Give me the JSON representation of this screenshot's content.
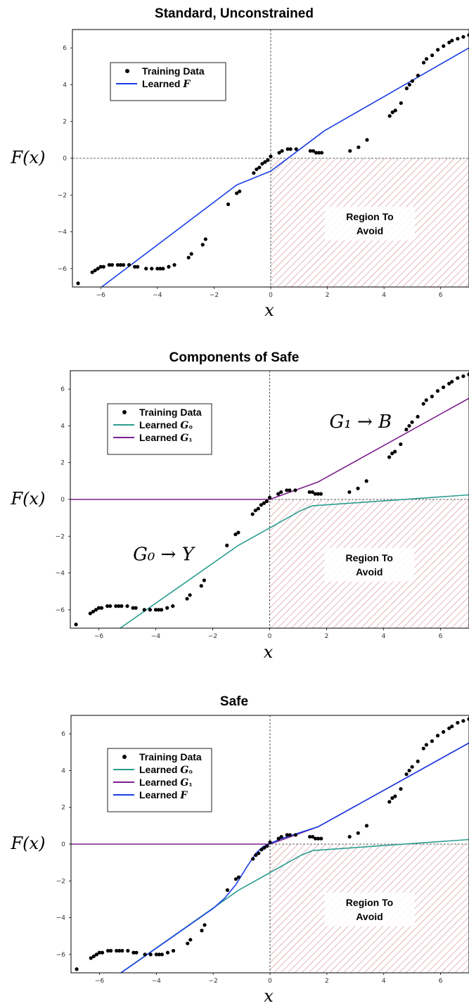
{
  "chart_data": [
    {
      "type": "line",
      "title": "Standard, Unconstrained",
      "xlabel": "x",
      "ylabel": "F(x)",
      "xlim": [
        -7,
        7
      ],
      "ylim": [
        -7,
        7
      ],
      "xticks": [
        -6,
        -4,
        -2,
        0,
        2,
        4,
        6
      ],
      "yticks": [
        -6,
        -4,
        -2,
        0,
        2,
        4,
        6
      ],
      "legend": [
        "Training Data",
        "Learned F"
      ],
      "legend_position": "upper-left",
      "region_label": [
        "Region To",
        "Avoid"
      ],
      "scatter": {
        "name": "Training Data",
        "x": [
          -6.8,
          -6.3,
          -6.2,
          -6.1,
          -6.0,
          -5.9,
          -5.7,
          -5.6,
          -5.4,
          -5.3,
          -5.2,
          -5.0,
          -4.8,
          -4.7,
          -4.4,
          -4.2,
          -4.0,
          -3.9,
          -3.8,
          -3.6,
          -3.4,
          -2.9,
          -2.8,
          -2.4,
          -2.3,
          -1.5,
          -1.2,
          -1.1,
          -0.6,
          -0.5,
          -0.4,
          -0.3,
          -0.2,
          -0.1,
          0.0,
          0.3,
          0.4,
          0.6,
          0.7,
          0.9,
          1.4,
          1.5,
          1.6,
          1.7,
          1.8,
          2.8,
          3.1,
          3.4,
          4.2,
          4.3,
          4.4,
          4.6,
          4.8,
          4.9,
          5.0,
          5.2,
          5.4,
          5.5,
          5.7,
          5.9,
          6.1,
          6.3,
          6.4,
          6.6,
          6.8,
          7.0
        ],
        "y": [
          -6.8,
          -6.2,
          -6.1,
          -6.0,
          -5.9,
          -5.9,
          -5.8,
          -5.8,
          -5.8,
          -5.8,
          -5.8,
          -5.8,
          -5.9,
          -5.9,
          -6.0,
          -6.0,
          -6.0,
          -6.0,
          -6.0,
          -5.9,
          -5.8,
          -5.4,
          -5.2,
          -4.7,
          -4.4,
          -2.5,
          -1.9,
          -1.8,
          -0.8,
          -0.6,
          -0.5,
          -0.3,
          -0.2,
          -0.1,
          0.1,
          0.3,
          0.4,
          0.5,
          0.5,
          0.5,
          0.4,
          0.4,
          0.3,
          0.3,
          0.3,
          0.4,
          0.6,
          1.0,
          2.3,
          2.5,
          2.6,
          3.0,
          3.8,
          4.0,
          4.2,
          4.5,
          5.2,
          5.4,
          5.6,
          5.9,
          6.1,
          6.3,
          6.4,
          6.5,
          6.6,
          6.7
        ]
      },
      "series": [
        {
          "name": "Learned F",
          "color": "#1a3ee6",
          "x": [
            -7,
            -1.2,
            0,
            1.9,
            7
          ],
          "y": [
            -8.2,
            -1.45,
            -0.7,
            1.5,
            6.0
          ]
        }
      ]
    },
    {
      "type": "line",
      "title": "Components of Safe",
      "xlabel": "x",
      "ylabel": "F(x)",
      "xlim": [
        -7,
        7
      ],
      "ylim": [
        -7,
        7
      ],
      "xticks": [
        -6,
        -4,
        -2,
        0,
        2,
        4,
        6
      ],
      "yticks": [
        -6,
        -4,
        -2,
        0,
        2,
        4,
        6
      ],
      "legend": [
        "Training Data",
        "Learned G₀",
        "Learned G₁"
      ],
      "legend_position": "upper-left",
      "region_label": [
        "Region To",
        "Avoid"
      ],
      "annotations": [
        {
          "text": "G₁ → B",
          "x": 2.1,
          "y": 3.9,
          "color": "#5a1a5e"
        },
        {
          "text": "G₀ → Y",
          "x": -4.8,
          "y": -3.3,
          "color": "#0f4f45"
        }
      ],
      "scatter": {
        "name": "Training Data",
        "x": [
          -6.8,
          -6.3,
          -6.2,
          -6.1,
          -6.0,
          -5.9,
          -5.7,
          -5.6,
          -5.4,
          -5.3,
          -5.2,
          -5.0,
          -4.8,
          -4.7,
          -4.4,
          -4.2,
          -4.0,
          -3.9,
          -3.8,
          -3.6,
          -3.4,
          -2.9,
          -2.8,
          -2.4,
          -2.3,
          -1.5,
          -1.2,
          -1.1,
          -0.6,
          -0.5,
          -0.4,
          -0.3,
          -0.2,
          -0.1,
          0.0,
          0.3,
          0.4,
          0.6,
          0.7,
          0.9,
          1.4,
          1.5,
          1.6,
          1.7,
          1.8,
          2.8,
          3.1,
          3.4,
          4.2,
          4.3,
          4.4,
          4.6,
          4.8,
          4.9,
          5.0,
          5.2,
          5.4,
          5.5,
          5.7,
          5.9,
          6.1,
          6.3,
          6.4,
          6.6,
          6.8,
          7.0
        ],
        "y": [
          -6.8,
          -6.2,
          -6.1,
          -6.0,
          -5.9,
          -5.9,
          -5.8,
          -5.8,
          -5.8,
          -5.8,
          -5.8,
          -5.8,
          -5.9,
          -5.9,
          -6.0,
          -6.0,
          -6.0,
          -6.0,
          -6.0,
          -5.9,
          -5.8,
          -5.4,
          -5.2,
          -4.7,
          -4.4,
          -2.5,
          -1.9,
          -1.8,
          -0.8,
          -0.6,
          -0.5,
          -0.3,
          -0.2,
          -0.1,
          0.1,
          0.3,
          0.4,
          0.5,
          0.5,
          0.5,
          0.4,
          0.4,
          0.3,
          0.3,
          0.3,
          0.4,
          0.6,
          1.0,
          2.3,
          2.5,
          2.6,
          3.0,
          3.8,
          4.0,
          4.2,
          4.5,
          5.2,
          5.4,
          5.6,
          5.9,
          6.1,
          6.3,
          6.4,
          6.6,
          6.7,
          6.8
        ]
      },
      "series": [
        {
          "name": "Learned G₀",
          "color": "#2a9d8f",
          "x": [
            -7,
            -1.1,
            1.1,
            1.5,
            7
          ],
          "y": [
            -8.9,
            -2.5,
            -0.6,
            -0.35,
            0.25
          ]
        },
        {
          "name": "Learned G₁",
          "color": "#7b1f8c",
          "x": [
            -7,
            0,
            1.7,
            7
          ],
          "y": [
            0,
            0,
            0.95,
            5.5
          ]
        }
      ]
    },
    {
      "type": "line",
      "title": "Safe",
      "xlabel": "x",
      "ylabel": "F(x)",
      "xlim": [
        -7,
        7
      ],
      "ylim": [
        -7,
        7
      ],
      "xticks": [
        -6,
        -4,
        -2,
        0,
        2,
        4,
        6
      ],
      "yticks": [
        -6,
        -4,
        -2,
        0,
        2,
        4,
        6
      ],
      "legend": [
        "Training Data",
        "Learned G₀",
        "Learned G₁",
        "Learned F"
      ],
      "legend_position": "upper-left",
      "region_label": [
        "Region To",
        "Avoid"
      ],
      "scatter": {
        "name": "Training Data",
        "x": [
          -6.8,
          -6.3,
          -6.2,
          -6.1,
          -6.0,
          -5.9,
          -5.7,
          -5.6,
          -5.4,
          -5.3,
          -5.2,
          -5.0,
          -4.8,
          -4.7,
          -4.4,
          -4.2,
          -4.0,
          -3.9,
          -3.8,
          -3.6,
          -3.4,
          -2.9,
          -2.8,
          -2.4,
          -2.3,
          -1.5,
          -1.2,
          -1.1,
          -0.6,
          -0.5,
          -0.4,
          -0.3,
          -0.2,
          -0.1,
          0.0,
          0.3,
          0.4,
          0.6,
          0.7,
          0.9,
          1.4,
          1.5,
          1.6,
          1.7,
          1.8,
          2.8,
          3.1,
          3.4,
          4.2,
          4.3,
          4.4,
          4.6,
          4.8,
          4.9,
          5.0,
          5.2,
          5.4,
          5.5,
          5.7,
          5.9,
          6.1,
          6.3,
          6.4,
          6.6,
          6.8,
          7.0
        ],
        "y": [
          -6.8,
          -6.2,
          -6.1,
          -6.0,
          -5.9,
          -5.9,
          -5.8,
          -5.8,
          -5.8,
          -5.8,
          -5.8,
          -5.8,
          -5.9,
          -5.9,
          -6.0,
          -6.0,
          -6.0,
          -6.0,
          -6.0,
          -5.9,
          -5.8,
          -5.4,
          -5.2,
          -4.7,
          -4.4,
          -2.5,
          -1.9,
          -1.8,
          -0.8,
          -0.6,
          -0.5,
          -0.3,
          -0.2,
          -0.1,
          0.1,
          0.3,
          0.4,
          0.5,
          0.5,
          0.5,
          0.4,
          0.4,
          0.3,
          0.3,
          0.3,
          0.4,
          0.6,
          1.0,
          2.3,
          2.5,
          2.6,
          3.0,
          3.8,
          4.0,
          4.2,
          4.5,
          5.2,
          5.4,
          5.6,
          5.9,
          6.1,
          6.3,
          6.4,
          6.6,
          6.7,
          6.8
        ]
      },
      "series": [
        {
          "name": "Learned G₀",
          "color": "#2a9d8f",
          "x": [
            -7,
            -1.1,
            1.1,
            1.5,
            7
          ],
          "y": [
            -8.9,
            -2.5,
            -0.6,
            -0.35,
            0.25
          ]
        },
        {
          "name": "Learned G₁",
          "color": "#7b1f8c",
          "x": [
            -7,
            0,
            1.7,
            7
          ],
          "y": [
            0,
            0,
            0.95,
            5.5
          ]
        },
        {
          "name": "Learned F",
          "color": "#1a3ee6",
          "x": [
            -7,
            -2.0,
            -1.6,
            -1.2,
            -0.8,
            -0.5,
            -0.25,
            -0.05,
            0.1,
            0.4,
            0.8,
            1.7,
            7
          ],
          "y": [
            -8.9,
            -3.5,
            -2.95,
            -2.2,
            -1.2,
            -0.5,
            -0.15,
            0.0,
            0.1,
            0.3,
            0.5,
            0.95,
            5.5
          ]
        }
      ]
    }
  ]
}
